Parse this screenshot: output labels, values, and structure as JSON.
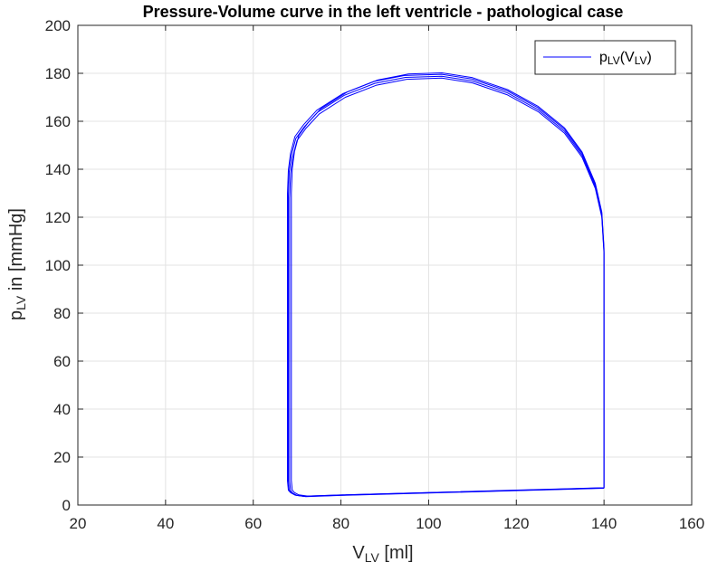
{
  "chart_data": {
    "type": "line",
    "title": "Pressure-Volume curve in the left ventricle - pathological case",
    "xlabel": {
      "main": "V",
      "sub": "LV",
      "unit": " [ml]"
    },
    "ylabel": {
      "main": "p",
      "sub": "LV",
      "unit": " in [mmHg]"
    },
    "xlim": [
      20,
      160
    ],
    "ylim": [
      0,
      200
    ],
    "xticks": [
      20,
      40,
      60,
      80,
      100,
      120,
      140,
      160
    ],
    "yticks": [
      0,
      20,
      40,
      60,
      80,
      100,
      120,
      140,
      160,
      180,
      200
    ],
    "grid": true,
    "legend_position": "top-right",
    "legend": {
      "main": "p",
      "sub1": "LV",
      "mid": "(V",
      "sub2": "LV",
      "end": ")"
    },
    "series": [
      {
        "color": "#0000ff",
        "x": [
          140,
          140,
          140,
          139.5,
          138,
          135,
          131,
          125,
          118,
          110,
          103,
          95,
          88,
          81,
          75,
          72,
          70,
          69,
          68.5,
          68.3,
          68.3,
          68.3,
          68.5,
          69,
          70,
          72,
          80,
          100,
          120,
          140
        ],
        "y": [
          7,
          60,
          105,
          120,
          132,
          145,
          155,
          164,
          171,
          176,
          178,
          177.5,
          175,
          170,
          163,
          157,
          152,
          145,
          138,
          128,
          60,
          10,
          6,
          5,
          4,
          3.5,
          4,
          5,
          6,
          7
        ]
      }
    ],
    "line_offsets": [
      {
        "dx": 0,
        "dy": 0
      },
      {
        "dx": -0.3,
        "dy": 0.8
      },
      {
        "dx": -0.5,
        "dy": 1.6
      },
      {
        "dx": 0.4,
        "dy": 2.2
      }
    ]
  }
}
